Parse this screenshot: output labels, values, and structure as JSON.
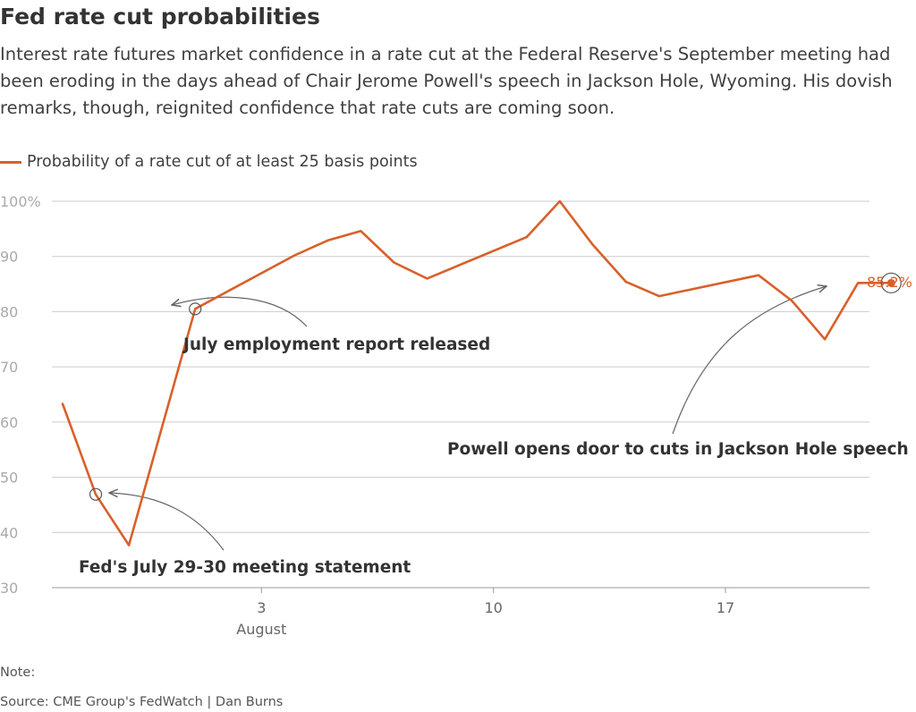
{
  "title": "Fed rate cut probabilities",
  "subtitle": "Interest rate futures market confidence in a rate cut at the Federal Reserve's September meeting had been eroding in the days ahead of Chair Jerome Powell's speech in Jackson Hole, Wyoming. His dovish remarks, though, reignited confidence that rate cuts are coming soon.",
  "footer": {
    "note": "Note:",
    "source": "Source: CME Group's FedWatch | Dan Burns"
  },
  "colors": {
    "line": "#d9602a",
    "grid": "#cccccc",
    "axis": "#999999"
  },
  "chart_data": {
    "type": "line",
    "title": "Fed rate cut probabilities",
    "xlabel": "",
    "ylabel": "",
    "ylim": [
      30,
      100
    ],
    "yticks": [
      30,
      40,
      50,
      60,
      70,
      80,
      90,
      100
    ],
    "ytick_labels": [
      "30",
      "40",
      "50",
      "60",
      "70",
      "80",
      "90",
      "100%"
    ],
    "xlim": [
      "2025-07-28",
      "2025-08-23"
    ],
    "xticks": [
      "2025-08-03",
      "2025-08-10",
      "2025-08-17"
    ],
    "xtick_labels": [
      "3",
      "10",
      "17"
    ],
    "xtick_sublabel": "August",
    "grid": true,
    "legend_position": "top-left",
    "series": [
      {
        "name": "Probability of a rate cut of at least 25 basis points",
        "color": "#d9602a",
        "x": [
          "2025-07-28",
          "2025-07-29",
          "2025-07-30",
          "2025-08-01",
          "2025-08-04",
          "2025-08-05",
          "2025-08-06",
          "2025-08-07",
          "2025-08-08",
          "2025-08-11",
          "2025-08-12",
          "2025-08-13",
          "2025-08-14",
          "2025-08-15",
          "2025-08-18",
          "2025-08-19",
          "2025-08-20",
          "2025-08-21",
          "2025-08-22"
        ],
        "y": [
          63.3,
          46.9,
          37.7,
          80.5,
          90.2,
          92.9,
          94.6,
          88.9,
          86.0,
          93.5,
          100,
          92.1,
          85.4,
          82.8,
          86.6,
          82.0,
          75.0,
          85.2,
          85.2
        ]
      }
    ],
    "end_label": "85.2%",
    "annotations": [
      {
        "text": "July employment report released",
        "x": "2025-08-01",
        "y": 80.5
      },
      {
        "text": "Fed's July 29-30 meeting statement",
        "x": "2025-07-29",
        "y": 46.9
      },
      {
        "text": "Powell opens door to cuts in Jackson Hole speech",
        "x": "2025-08-22",
        "y": 85.2
      }
    ]
  }
}
